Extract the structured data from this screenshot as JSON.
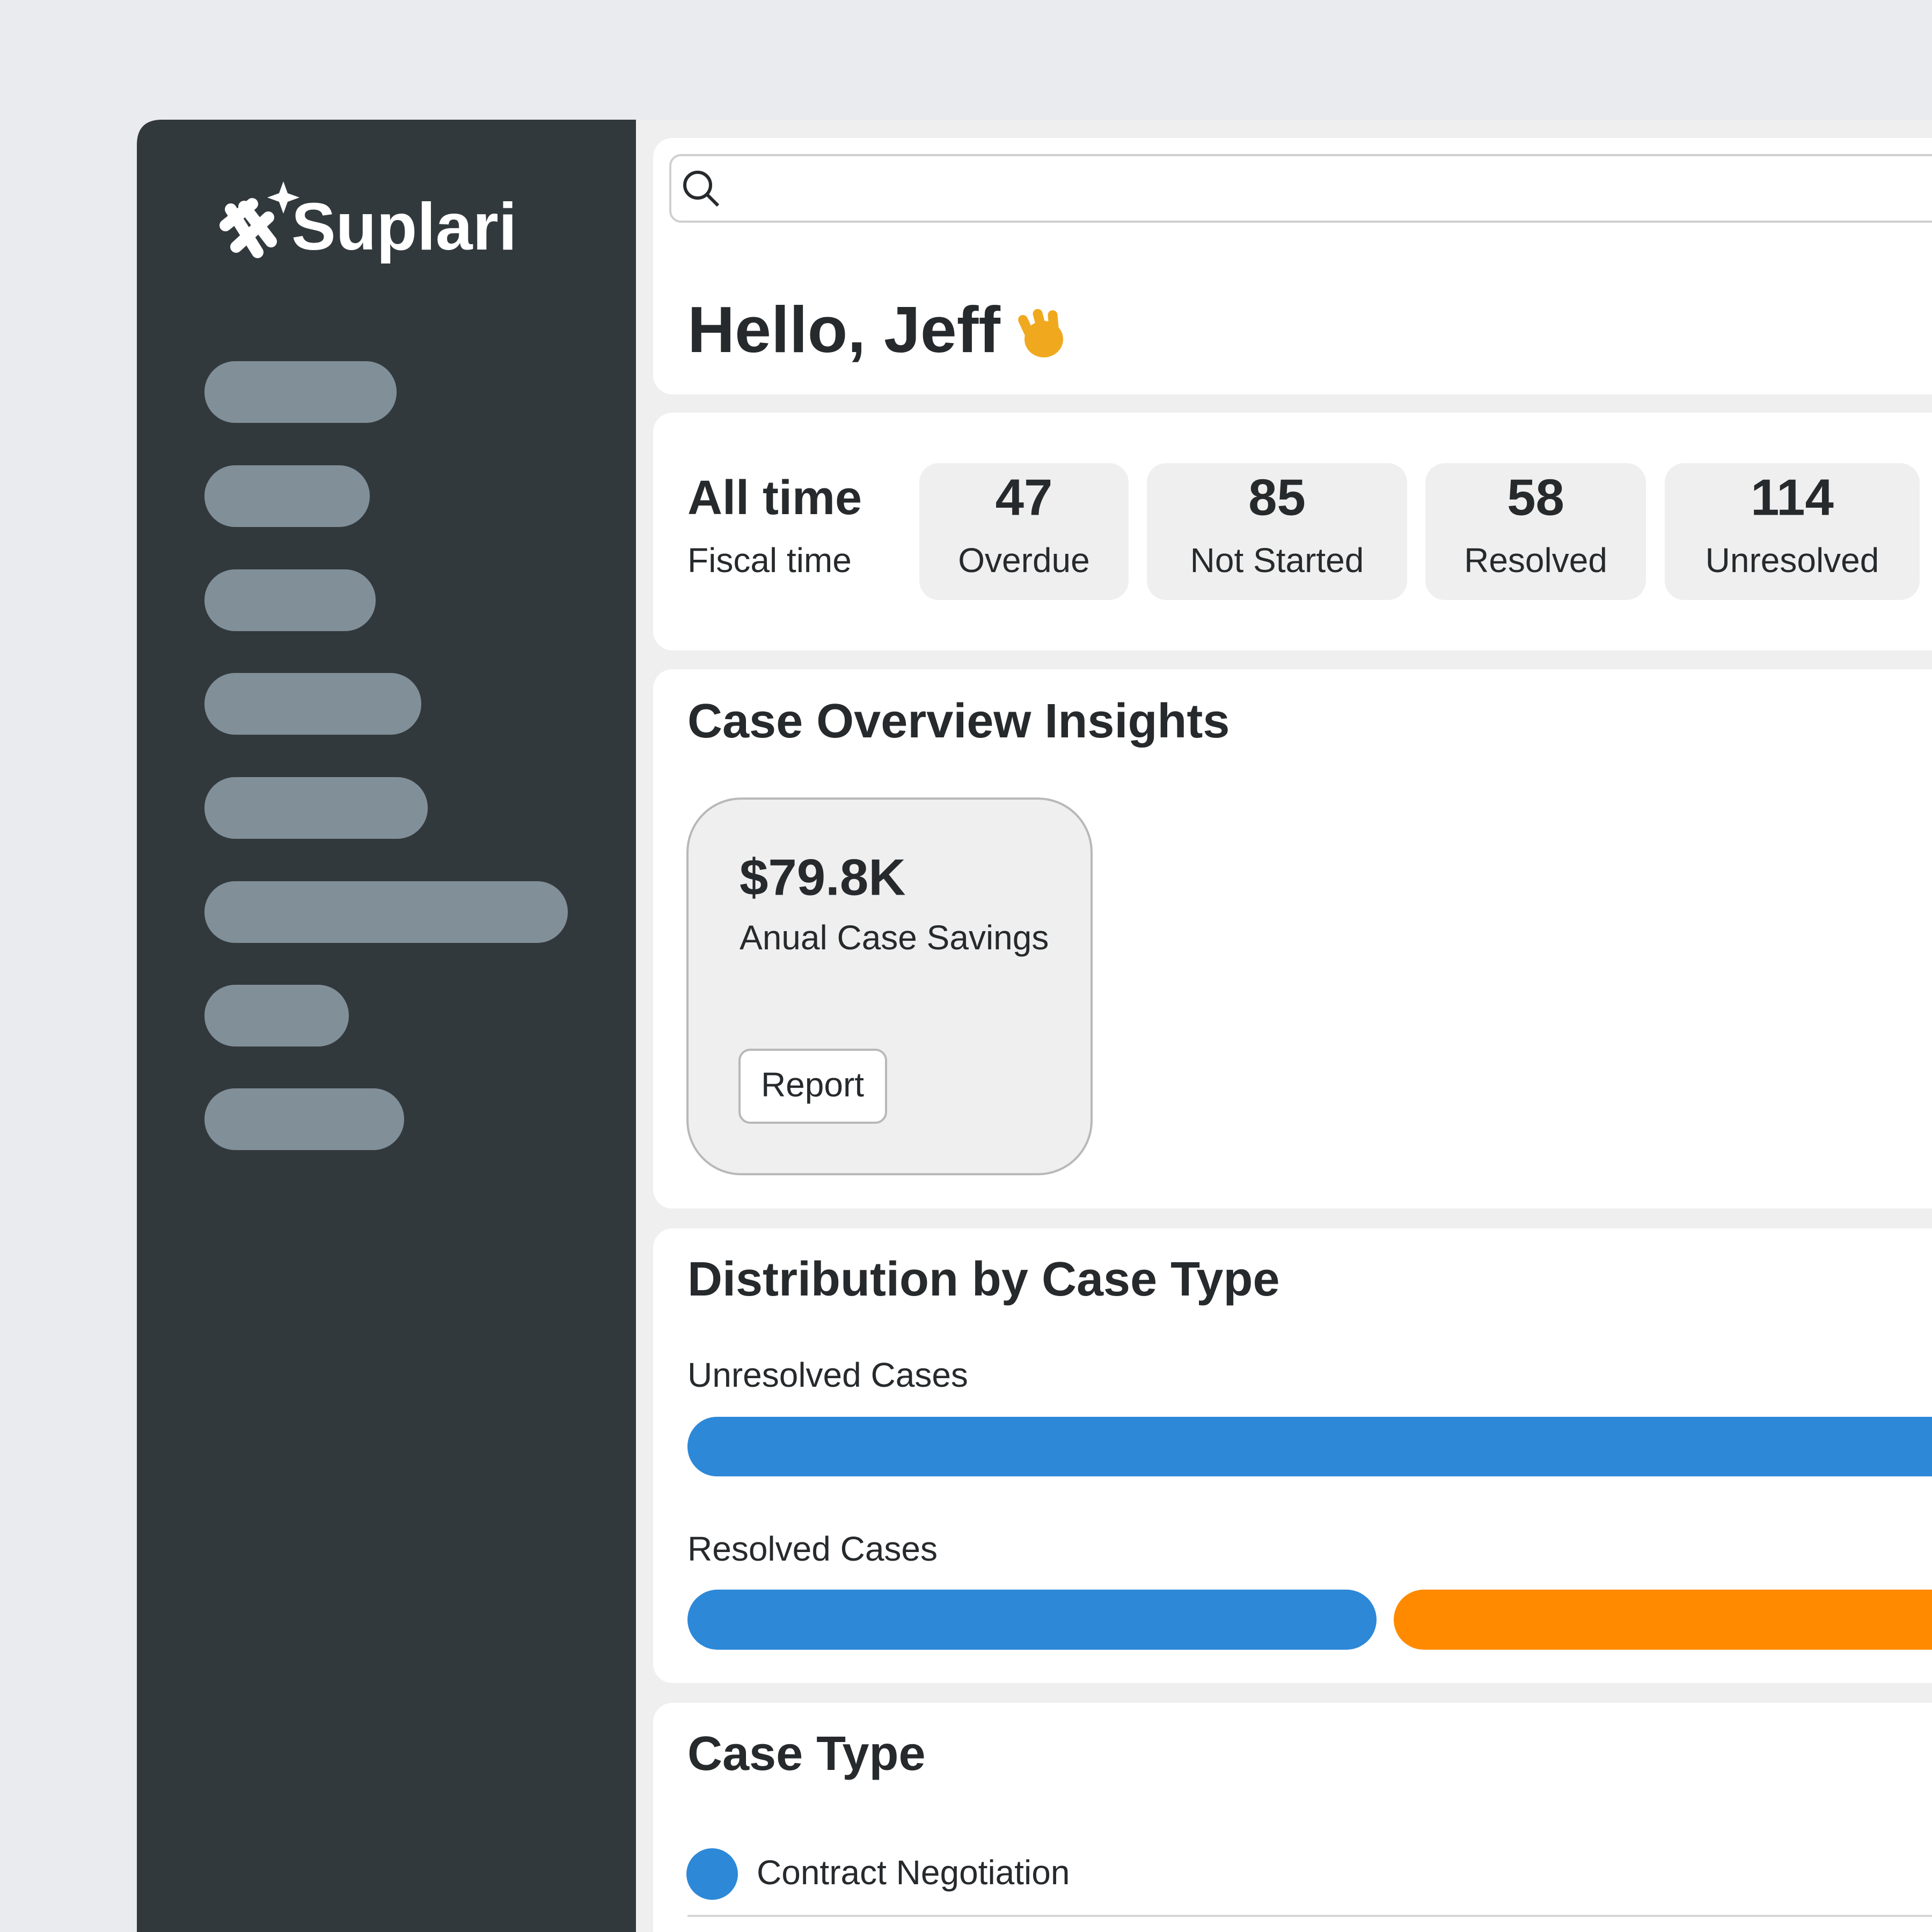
{
  "brand": "Suplari",
  "greeting": "Hello, Jeff",
  "period": {
    "primary": "All time",
    "secondary": "Fiscal time"
  },
  "stats": [
    {
      "value": 47,
      "label": "Overdue"
    },
    {
      "value": 85,
      "label": "Not Started"
    },
    {
      "value": 58,
      "label": "Resolved"
    },
    {
      "value": 114,
      "label": "Unresolved"
    }
  ],
  "insights": {
    "title": "Case Overview Insights",
    "card": {
      "value": "$79.8K",
      "label": "Anual Case Savings",
      "button": "Report"
    }
  },
  "distribution": {
    "title": "Distribution by Case Type",
    "rows": [
      {
        "label": "Unresolved Cases"
      },
      {
        "label": "Resolved Cases"
      }
    ]
  },
  "case_type": {
    "title": "Case Type",
    "items": [
      "Contract Negotiation"
    ]
  }
}
